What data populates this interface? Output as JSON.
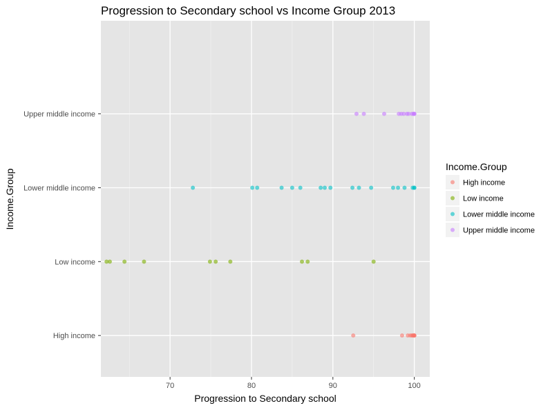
{
  "chart_data": {
    "type": "scatter",
    "title": "Progression to Secondary school vs Income Group 2013",
    "xlabel": "Progression to Secondary school",
    "ylabel": "Income.Group",
    "xlim": [
      61.5,
      101.9
    ],
    "x_ticks": [
      70,
      80,
      90,
      100
    ],
    "x_tick_labels": [
      "70",
      "80",
      "90",
      "100"
    ],
    "categories": [
      "High income",
      "Low income",
      "Lower middle income",
      "Upper middle income"
    ],
    "grid": true,
    "legend": {
      "title": "Income.Group",
      "position": "right"
    },
    "series": [
      {
        "name": "High income",
        "color": "#F8766D",
        "x": [
          92.5,
          98.5,
          99.2,
          99.5,
          99.7,
          99.8,
          99.9,
          100,
          100,
          100
        ]
      },
      {
        "name": "Low income",
        "color": "#7CAE00",
        "x": [
          62.2,
          62.6,
          64.4,
          66.8,
          74.9,
          75.6,
          77.4,
          86.2,
          86.9,
          95
        ]
      },
      {
        "name": "Lower middle income",
        "color": "#00BFC4",
        "x": [
          72.8,
          80.1,
          80.7,
          83.7,
          85.0,
          86.0,
          88.5,
          89.0,
          89.7,
          92.4,
          93.2,
          94.7,
          97.4,
          98.0,
          98.8,
          99.8,
          100,
          100
        ]
      },
      {
        "name": "Upper middle income",
        "color": "#C77CFF",
        "x": [
          92.9,
          93.8,
          96.3,
          98.1,
          98.4,
          98.7,
          99.1,
          99.3,
          99.7,
          99.9,
          100,
          100
        ]
      }
    ]
  }
}
